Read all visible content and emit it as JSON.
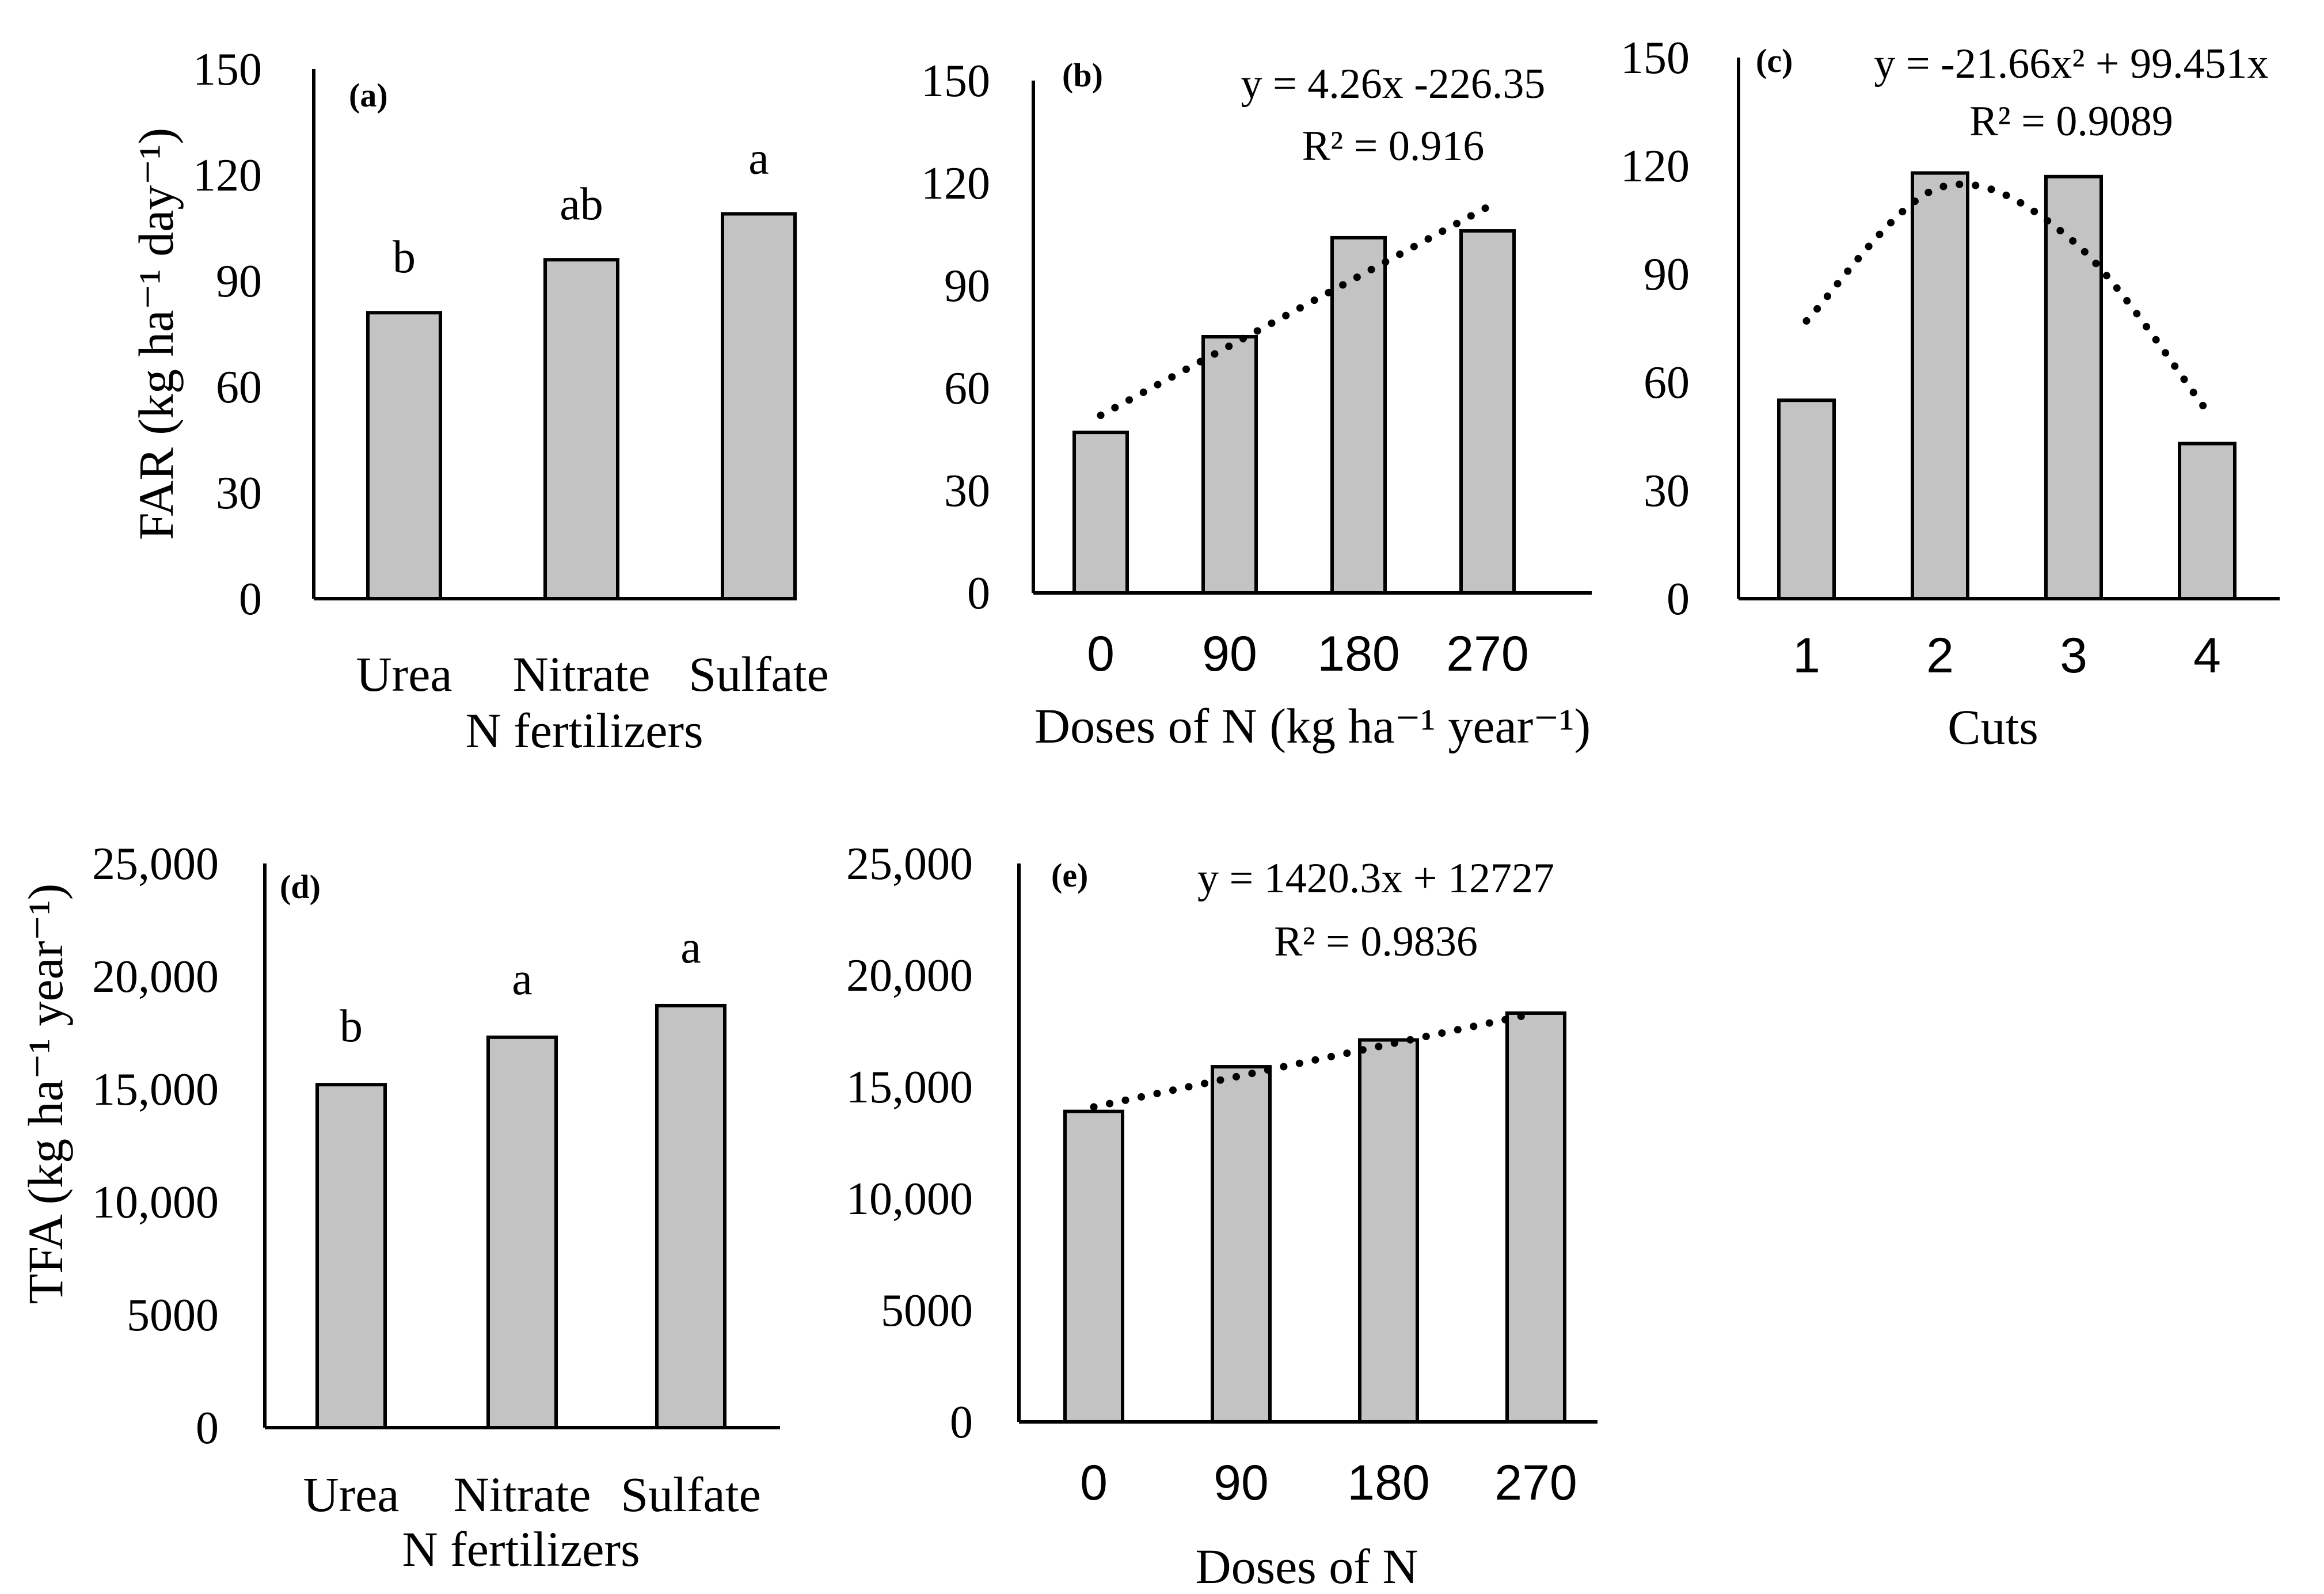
{
  "colors": {
    "bar_fill": "#c3c3c3",
    "bar_stroke": "#000000",
    "trend": "#000000",
    "axis": "#000000"
  },
  "chart_data": [
    {
      "id": "a",
      "panel_label": "(a)",
      "type": "bar",
      "categories": [
        "Urea",
        "Nitrate",
        "Sulfate"
      ],
      "values": [
        81,
        96,
        109
      ],
      "significance": [
        "b",
        "ab",
        "a"
      ],
      "xlabel": "N fertilizers",
      "ylabel": "FAR (kg ha⁻¹ day⁻¹)",
      "ylim": [
        0,
        150
      ],
      "yticks": [
        "0",
        "30",
        "60",
        "90",
        "120",
        "150"
      ],
      "grid": false,
      "legend": "none",
      "tick_font": "serif"
    },
    {
      "id": "b",
      "panel_label": "(b)",
      "type": "bar",
      "categories": [
        "0",
        "90",
        "180",
        "270"
      ],
      "values": [
        47,
        75,
        104,
        106
      ],
      "trendline": {
        "kind": "linear",
        "equation": "y = 4.26x -226.35",
        "r2": "R² = 0.916",
        "start": 52,
        "end": 113
      },
      "xlabel": "Doses of N (kg ha⁻¹ year⁻¹)",
      "ylabel": "",
      "ylim": [
        0,
        150
      ],
      "yticks": [
        "0",
        "30",
        "60",
        "90",
        "120",
        "150"
      ],
      "grid": false,
      "legend": "none",
      "tick_font": "sans"
    },
    {
      "id": "c",
      "panel_label": "(c)",
      "type": "bar",
      "categories": [
        "1",
        "2",
        "3",
        "4"
      ],
      "values": [
        55,
        118,
        117,
        43
      ],
      "trendline": {
        "kind": "polynomial",
        "equation": "y = -21.66x² + 99.451x",
        "r2": "R² = 0.9089",
        "points": [
          77,
          114,
          99,
          52
        ]
      },
      "xlabel": "Cuts",
      "ylabel": "",
      "ylim": [
        0,
        150
      ],
      "yticks": [
        "0",
        "30",
        "60",
        "90",
        "120",
        "150"
      ],
      "grid": false,
      "legend": "none",
      "tick_font": "sans"
    },
    {
      "id": "d",
      "panel_label": "(d)",
      "type": "bar",
      "categories": [
        "Urea",
        "Nitrate",
        "Sulfate"
      ],
      "values": [
        15200,
        17300,
        18700
      ],
      "significance": [
        "b",
        "a",
        "a"
      ],
      "xlabel": "N fertilizers",
      "ylabel": "TFA (kg  ha⁻¹ year⁻¹)",
      "ylim": [
        0,
        25000
      ],
      "yticks": [
        "0",
        "5000",
        "10,000",
        "15,000",
        "20,000",
        "25,000"
      ],
      "grid": false,
      "legend": "none",
      "tick_font": "serif"
    },
    {
      "id": "e",
      "panel_label": "(e)",
      "type": "bar",
      "categories": [
        "0",
        "90",
        "180",
        "270"
      ],
      "values": [
        13900,
        15900,
        17100,
        18300
      ],
      "trendline": {
        "kind": "linear",
        "equation": "y = 1420.3x + 12727",
        "r2": "R² = 0.9836",
        "start": 14100,
        "end": 18300
      },
      "xlabel": "Doses of N",
      "ylabel": "",
      "ylim": [
        0,
        25000
      ],
      "yticks": [
        "0",
        "5000",
        "10,000",
        "15,000",
        "20,000",
        "25,000"
      ],
      "grid": false,
      "legend": "none",
      "tick_font": "sans"
    }
  ]
}
